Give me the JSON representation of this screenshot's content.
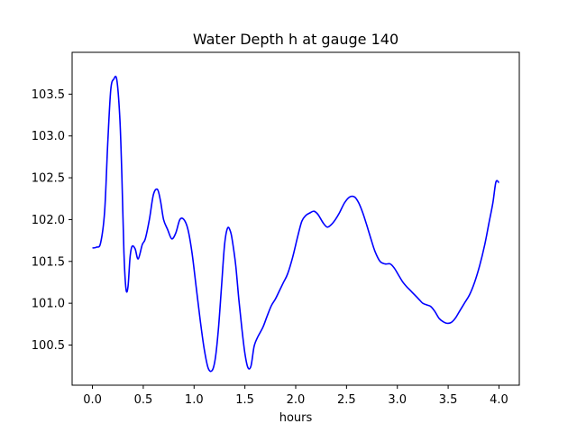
{
  "chart_data": {
    "type": "line",
    "title": "Water Depth h at gauge 140",
    "xlabel": "hours",
    "ylabel": "",
    "xlim": [
      -0.2,
      4.2
    ],
    "ylim": [
      100.02,
      104.0
    ],
    "xticks": [
      0.0,
      0.5,
      1.0,
      1.5,
      2.0,
      2.5,
      3.0,
      3.5,
      4.0
    ],
    "xtick_labels": [
      "0.0",
      "0.5",
      "1.0",
      "1.5",
      "2.0",
      "2.5",
      "3.0",
      "3.5",
      "4.0"
    ],
    "yticks": [
      100.5,
      101.0,
      101.5,
      102.0,
      102.5,
      103.0,
      103.5
    ],
    "ytick_labels": [
      "100.5",
      "101.0",
      "101.5",
      "102.0",
      "102.5",
      "103.0",
      "103.5"
    ],
    "grid": false,
    "legend": "none",
    "series": [
      {
        "color": "#0000ff",
        "x": [
          0.0,
          0.04,
          0.08,
          0.12,
          0.15,
          0.18,
          0.21,
          0.24,
          0.27,
          0.29,
          0.31,
          0.33,
          0.35,
          0.37,
          0.39,
          0.42,
          0.45,
          0.49,
          0.52,
          0.56,
          0.6,
          0.64,
          0.67,
          0.7,
          0.74,
          0.78,
          0.82,
          0.86,
          0.9,
          0.94,
          0.98,
          1.02,
          1.06,
          1.1,
          1.14,
          1.18,
          1.21,
          1.24,
          1.27,
          1.3,
          1.33,
          1.36,
          1.38,
          1.41,
          1.44,
          1.47,
          1.5,
          1.53,
          1.56,
          1.59,
          1.62,
          1.65,
          1.68,
          1.72,
          1.76,
          1.8,
          1.84,
          1.88,
          1.92,
          1.97,
          2.02,
          2.06,
          2.1,
          2.14,
          2.18,
          2.22,
          2.27,
          2.31,
          2.35,
          2.39,
          2.43,
          2.48,
          2.53,
          2.58,
          2.62,
          2.66,
          2.7,
          2.74,
          2.78,
          2.83,
          2.88,
          2.93,
          2.97,
          3.01,
          3.05,
          3.09,
          3.13,
          3.17,
          3.21,
          3.25,
          3.29,
          3.33,
          3.37,
          3.41,
          3.45,
          3.49,
          3.53,
          3.57,
          3.61,
          3.66,
          3.71,
          3.76,
          3.81,
          3.86,
          3.9,
          3.94,
          3.97,
          4.0
        ],
        "y": [
          101.66,
          101.67,
          101.72,
          102.1,
          102.9,
          103.55,
          103.68,
          103.67,
          103.2,
          102.5,
          101.6,
          101.17,
          101.2,
          101.55,
          101.68,
          101.65,
          101.53,
          101.7,
          101.77,
          102.0,
          102.3,
          102.36,
          102.22,
          102.0,
          101.88,
          101.77,
          101.84,
          102.0,
          102.0,
          101.88,
          101.6,
          101.2,
          100.8,
          100.45,
          100.22,
          100.2,
          100.35,
          100.7,
          101.2,
          101.7,
          101.9,
          101.85,
          101.72,
          101.45,
          101.05,
          100.7,
          100.4,
          100.23,
          100.25,
          100.48,
          100.58,
          100.65,
          100.72,
          100.85,
          100.97,
          101.05,
          101.15,
          101.25,
          101.35,
          101.55,
          101.8,
          101.98,
          102.05,
          102.08,
          102.1,
          102.06,
          101.96,
          101.91,
          101.94,
          102.0,
          102.08,
          102.2,
          102.27,
          102.27,
          102.2,
          102.08,
          101.93,
          101.77,
          101.62,
          101.5,
          101.47,
          101.47,
          101.42,
          101.34,
          101.26,
          101.2,
          101.15,
          101.1,
          101.05,
          101.0,
          100.98,
          100.96,
          100.9,
          100.82,
          100.78,
          100.76,
          100.77,
          100.82,
          100.9,
          101.0,
          101.1,
          101.25,
          101.45,
          101.7,
          101.95,
          102.2,
          102.45,
          102.44
        ]
      }
    ]
  }
}
